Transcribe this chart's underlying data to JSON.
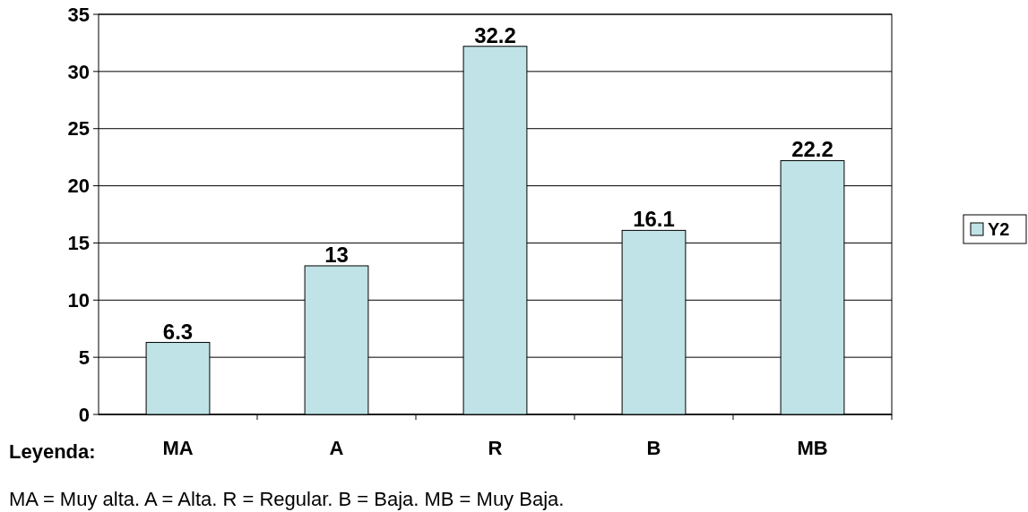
{
  "chart_data": {
    "type": "bar",
    "categories": [
      "MA",
      "A",
      "R",
      "B",
      "MB"
    ],
    "series": [
      {
        "name": "Y2",
        "color": "#bfe3e6",
        "values": [
          6.3,
          13,
          32.2,
          16.1,
          22.2
        ]
      }
    ],
    "ylim": [
      0,
      35
    ],
    "yticks": [
      0,
      5,
      10,
      15,
      20,
      25,
      30,
      35
    ],
    "grid": "y",
    "legend": "right",
    "data_labels": true,
    "annotations": [
      "Leyenda:",
      "MA = Muy alta.  A = Alta.  R = Regular.  B =  Baja.  MB = Muy Baja."
    ]
  }
}
